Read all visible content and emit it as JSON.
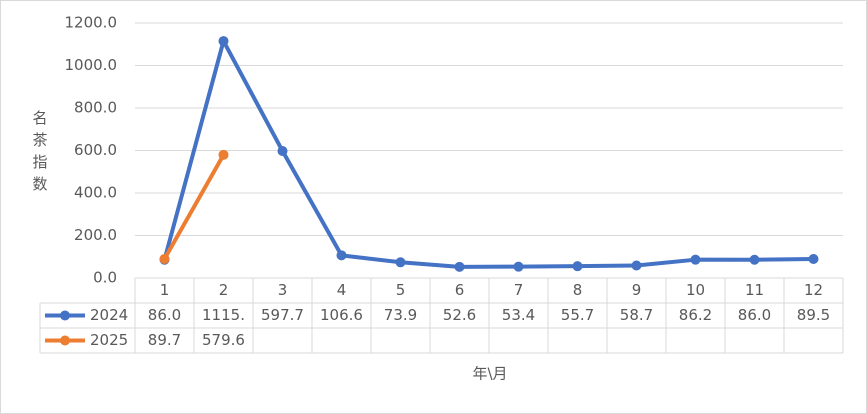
{
  "chart_data": {
    "type": "line",
    "y_label": "名茶指数",
    "x_label": "年\\月",
    "categories": [
      "1",
      "2",
      "3",
      "4",
      "5",
      "6",
      "7",
      "8",
      "9",
      "10",
      "11",
      "12"
    ],
    "series": [
      {
        "name": "2024",
        "color": "#4472c4",
        "values": [
          86.0,
          1115,
          597.7,
          106.6,
          73.9,
          52.6,
          53.4,
          55.7,
          58.7,
          86.2,
          86.0,
          89.5
        ],
        "value_labels": [
          "86.0",
          "1115.",
          "597.7",
          "106.6",
          "73.9",
          "52.6",
          "53.4",
          "55.7",
          "58.7",
          "86.2",
          "86.0",
          "89.5"
        ]
      },
      {
        "name": "2025",
        "color": "#ed7d31",
        "values": [
          89.7,
          579.6,
          null,
          null,
          null,
          null,
          null,
          null,
          null,
          null,
          null,
          null
        ],
        "value_labels": [
          "89.7",
          "579.6",
          null,
          null,
          null,
          null,
          null,
          null,
          null,
          null,
          null,
          null
        ]
      }
    ],
    "ylim": [
      0,
      1200
    ],
    "yticks": [
      {
        "value": 0,
        "label": "0.0"
      },
      {
        "value": 200,
        "label": "200.0"
      },
      {
        "value": 400,
        "label": "400.0"
      },
      {
        "value": 600,
        "label": "600.0"
      },
      {
        "value": 800,
        "label": "800.0"
      },
      {
        "value": 1000,
        "label": "1000.0"
      },
      {
        "value": 1200,
        "label": "1200.0"
      }
    ],
    "grid": true,
    "data_table": true
  }
}
